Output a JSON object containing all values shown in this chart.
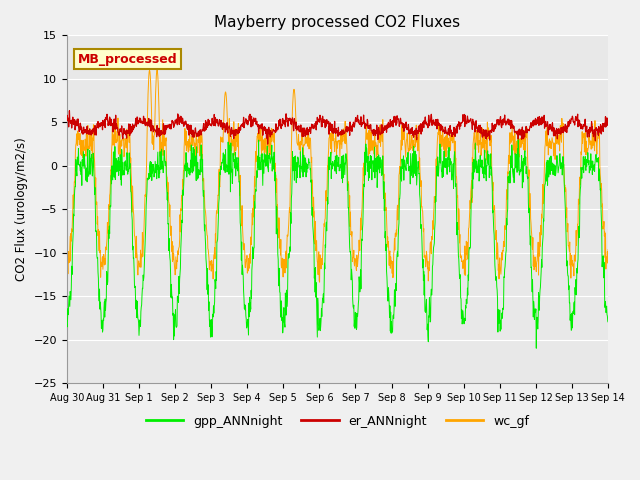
{
  "title": "Mayberry processed CO2 Fluxes",
  "ylabel": "CO2 Flux (urology/m2/s)",
  "ylim": [
    -25,
    15
  ],
  "yticks": [
    -25,
    -20,
    -15,
    -10,
    -5,
    0,
    5,
    10,
    15
  ],
  "bg_color": "#e8e8e8",
  "fig_color": "#f0f0f0",
  "legend_label": "MB_processed",
  "legend_box_color": "#ffffcc",
  "legend_box_edge": "#aa8800",
  "legend_text_color": "#cc0000",
  "line_green": "#00ee00",
  "line_red": "#cc0000",
  "line_orange": "#ffa500",
  "legend_items": [
    "gpp_ANNnight",
    "er_ANNnight",
    "wc_gf"
  ],
  "n_days": 15,
  "points_per_day": 96,
  "x_tick_labels": [
    "Aug 30",
    "Aug 31",
    "Sep 1",
    "Sep 2",
    "Sep 3",
    "Sep 4",
    "Sep 5",
    "Sep 6",
    "Sep 7",
    "Sep 8",
    "Sep 9",
    "Sep 10",
    "Sep 11",
    "Sep 12",
    "Sep 13",
    "Sep 14"
  ],
  "seed": 12345
}
